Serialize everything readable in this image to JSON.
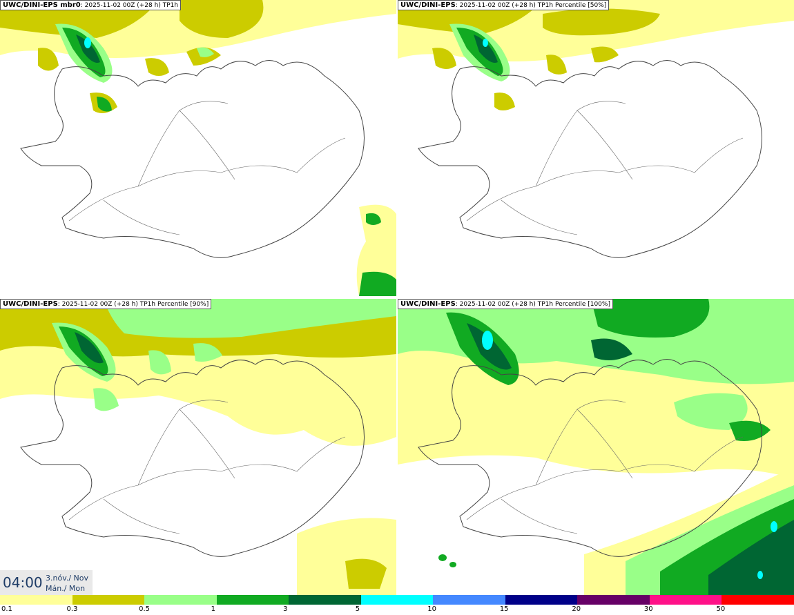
{
  "panels": [
    {
      "model": "UWC/DINI-EPS mbr0",
      "meta": ": 2025-11-02 00Z (+28 h) TP1h"
    },
    {
      "model": "UWC/DINI-EPS",
      "meta": ": 2025-11-02 00Z (+28 h) TP1h Percentile [50%]"
    },
    {
      "model": "UWC/DINI-EPS",
      "meta": ": 2025-11-02 00Z (+28 h) TP1h Percentile [90%]"
    },
    {
      "model": "UWC/DINI-EPS",
      "meta": ": 2025-11-02 00Z (+28 h) TP1h Percentile [100%]"
    }
  ],
  "time": {
    "clock": "04:00",
    "date_line": "3.nóv./ Nov",
    "day_line": "Mán./ Mon"
  },
  "legend": {
    "labels": [
      "0.1",
      "0.3",
      "0.5",
      "1",
      "3",
      "5",
      "10",
      "15",
      "20",
      "30",
      "50"
    ],
    "colors": [
      "#ffff99",
      "#cccc00",
      "#99ff88",
      "#11aa22",
      "#006633",
      "#00ffff",
      "#4488ff",
      "#000088",
      "#660066",
      "#ff1188",
      "#ff0000"
    ]
  },
  "colors": {
    "p01": "#ffff99",
    "p03": "#cccc00",
    "p05": "#99ff88",
    "p1": "#11aa22",
    "p3": "#006633",
    "p5": "#00ffff",
    "coast": "#444444"
  }
}
